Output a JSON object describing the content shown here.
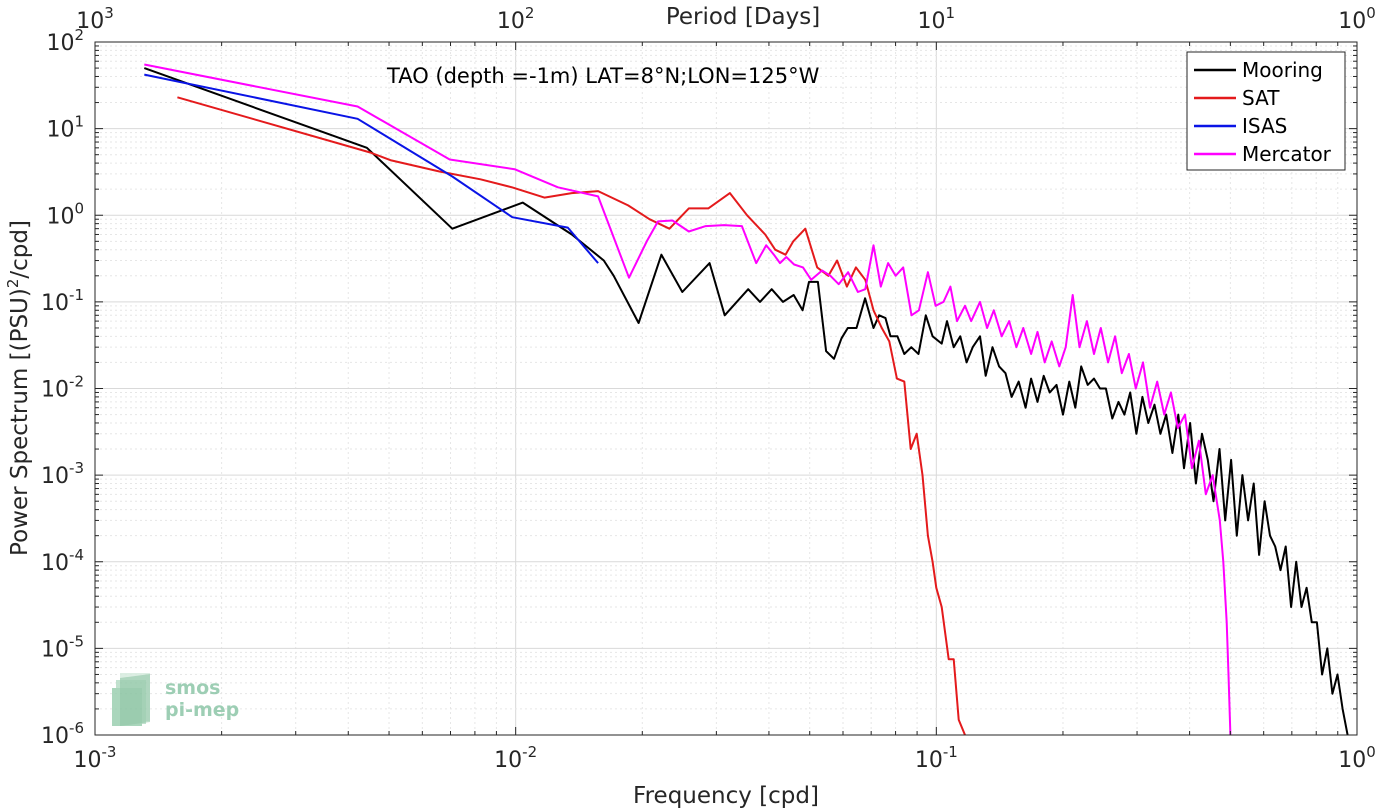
{
  "chart_data": {
    "type": "line",
    "xscale": "log",
    "yscale": "log",
    "xlim": [
      0.001,
      1
    ],
    "ylim": [
      1e-06,
      100
    ],
    "grid": true,
    "minor_grid": true,
    "xlabel": "Frequency [cpd]",
    "ylabel": "Power Spectrum [(PSU)",
    "ylabel_sup": "2",
    "ylabel_tail": "/cpd]",
    "top_axis_label": "Period [Days]",
    "annotation": "TAO (depth =-1m) LAT=8°N;LON=125°W",
    "legend_position": "top-right",
    "x_ticks": [
      {
        "value": 0.001,
        "base": "10",
        "exp": "-3"
      },
      {
        "value": 0.01,
        "base": "10",
        "exp": "-2"
      },
      {
        "value": 0.1,
        "base": "10",
        "exp": "-1"
      },
      {
        "value": 1,
        "base": "10",
        "exp": "0"
      }
    ],
    "top_ticks": [
      {
        "value": 0.001,
        "base": "10",
        "exp": "3"
      },
      {
        "value": 0.01,
        "base": "10",
        "exp": "2"
      },
      {
        "value": 0.1,
        "base": "10",
        "exp": "1"
      },
      {
        "value": 1,
        "base": "10",
        "exp": "0"
      }
    ],
    "y_ticks": [
      {
        "value": 100,
        "base": "10",
        "exp": "2"
      },
      {
        "value": 10,
        "base": "10",
        "exp": "1"
      },
      {
        "value": 1,
        "base": "10",
        "exp": "0"
      },
      {
        "value": 0.1,
        "base": "10",
        "exp": "-1"
      },
      {
        "value": 0.01,
        "base": "10",
        "exp": "-2"
      },
      {
        "value": 0.001,
        "base": "10",
        "exp": "-3"
      },
      {
        "value": 0.0001,
        "base": "10",
        "exp": "-4"
      },
      {
        "value": 1e-05,
        "base": "10",
        "exp": "-5"
      },
      {
        "value": 1e-06,
        "base": "10",
        "exp": "-6"
      }
    ],
    "series": [
      {
        "name": "Mooring",
        "color": "#000000",
        "points": [
          [
            0.00131,
            50
          ],
          [
            0.00443,
            6
          ],
          [
            0.00707,
            0.7
          ],
          [
            0.0104,
            1.4
          ],
          [
            0.0136,
            0.6
          ],
          [
            0.0162,
            0.3
          ],
          [
            0.0171,
            0.2
          ],
          [
            0.0196,
            0.057
          ],
          [
            0.0222,
            0.35
          ],
          [
            0.0249,
            0.13
          ],
          [
            0.0289,
            0.28
          ],
          [
            0.0314,
            0.07
          ],
          [
            0.0357,
            0.14
          ],
          [
            0.0381,
            0.1
          ],
          [
            0.0406,
            0.14
          ],
          [
            0.0432,
            0.1
          ],
          [
            0.0458,
            0.12
          ],
          [
            0.0481,
            0.08
          ],
          [
            0.0498,
            0.17
          ],
          [
            0.0523,
            0.17
          ],
          [
            0.0547,
            0.027
          ],
          [
            0.0571,
            0.022
          ],
          [
            0.0595,
            0.038
          ],
          [
            0.0616,
            0.05
          ],
          [
            0.0646,
            0.05
          ],
          [
            0.0677,
            0.11
          ],
          [
            0.0709,
            0.05
          ],
          [
            0.0731,
            0.07
          ],
          [
            0.0757,
            0.065
          ],
          [
            0.0778,
            0.04
          ],
          [
            0.0808,
            0.04
          ],
          [
            0.0839,
            0.025
          ],
          [
            0.0872,
            0.03
          ],
          [
            0.0907,
            0.025
          ],
          [
            0.0944,
            0.07
          ],
          [
            0.098,
            0.04
          ],
          [
            0.103,
            0.033
          ],
          [
            0.106,
            0.06
          ],
          [
            0.11,
            0.03
          ],
          [
            0.114,
            0.04
          ],
          [
            0.118,
            0.02
          ],
          [
            0.122,
            0.03
          ],
          [
            0.127,
            0.04
          ],
          [
            0.131,
            0.014
          ],
          [
            0.136,
            0.03
          ],
          [
            0.141,
            0.018
          ],
          [
            0.146,
            0.015
          ],
          [
            0.151,
            0.008
          ],
          [
            0.157,
            0.012
          ],
          [
            0.163,
            0.006
          ],
          [
            0.168,
            0.013
          ],
          [
            0.174,
            0.007
          ],
          [
            0.18,
            0.014
          ],
          [
            0.186,
            0.009
          ],
          [
            0.193,
            0.011
          ],
          [
            0.2,
            0.005
          ],
          [
            0.207,
            0.012
          ],
          [
            0.214,
            0.006
          ],
          [
            0.221,
            0.018
          ],
          [
            0.229,
            0.011
          ],
          [
            0.237,
            0.013
          ],
          [
            0.245,
            0.01
          ],
          [
            0.253,
            0.01
          ],
          [
            0.262,
            0.0045
          ],
          [
            0.271,
            0.007
          ],
          [
            0.28,
            0.005
          ],
          [
            0.289,
            0.009
          ],
          [
            0.299,
            0.003
          ],
          [
            0.309,
            0.008
          ],
          [
            0.319,
            0.004
          ],
          [
            0.33,
            0.0065
          ],
          [
            0.341,
            0.003
          ],
          [
            0.352,
            0.005
          ],
          [
            0.364,
            0.0018
          ],
          [
            0.376,
            0.005
          ],
          [
            0.388,
            0.0012
          ],
          [
            0.401,
            0.004
          ],
          [
            0.414,
            0.0008
          ],
          [
            0.428,
            0.003
          ],
          [
            0.442,
            0.0015
          ],
          [
            0.456,
            0.0005
          ],
          [
            0.471,
            0.002
          ],
          [
            0.486,
            0.0003
          ],
          [
            0.502,
            0.0015
          ],
          [
            0.518,
            0.0002
          ],
          [
            0.534,
            0.001
          ],
          [
            0.551,
            0.0003
          ],
          [
            0.568,
            0.0008
          ],
          [
            0.585,
            0.00012
          ],
          [
            0.603,
            0.0005
          ],
          [
            0.621,
            0.0002
          ],
          [
            0.639,
            0.00015
          ],
          [
            0.658,
            8e-05
          ],
          [
            0.677,
            0.00015
          ],
          [
            0.697,
            3e-05
          ],
          [
            0.717,
            0.0001
          ],
          [
            0.738,
            3e-05
          ],
          [
            0.759,
            5e-05
          ],
          [
            0.781,
            2e-05
          ],
          [
            0.803,
            2e-05
          ],
          [
            0.826,
            5e-06
          ],
          [
            0.85,
            1e-05
          ],
          [
            0.874,
            3e-06
          ],
          [
            0.899,
            5e-06
          ],
          [
            0.924,
            2e-06
          ],
          [
            0.95,
            1e-06
          ]
        ]
      },
      {
        "name": "SAT",
        "color": "#e41a1c",
        "points": [
          [
            0.00157,
            23
          ],
          [
            0.00451,
            5.3
          ],
          [
            0.00506,
            4.3
          ],
          [
            0.00659,
            3.2
          ],
          [
            0.00825,
            2.6
          ],
          [
            0.0098,
            2.1
          ],
          [
            0.0117,
            1.6
          ],
          [
            0.0136,
            1.8
          ],
          [
            0.0157,
            1.9
          ],
          [
            0.0185,
            1.3
          ],
          [
            0.0208,
            0.9
          ],
          [
            0.0232,
            0.7
          ],
          [
            0.0258,
            1.2
          ],
          [
            0.0287,
            1.2
          ],
          [
            0.0323,
            1.8
          ],
          [
            0.0355,
            1.0
          ],
          [
            0.0392,
            0.6
          ],
          [
            0.0414,
            0.4
          ],
          [
            0.0438,
            0.35
          ],
          [
            0.0457,
            0.5
          ],
          [
            0.0488,
            0.7
          ],
          [
            0.0521,
            0.25
          ],
          [
            0.0554,
            0.2
          ],
          [
            0.0581,
            0.3
          ],
          [
            0.0613,
            0.15
          ],
          [
            0.0644,
            0.25
          ],
          [
            0.0678,
            0.18
          ],
          [
            0.0709,
            0.08
          ],
          [
            0.0742,
            0.05
          ],
          [
            0.0773,
            0.035
          ],
          [
            0.0806,
            0.013
          ],
          [
            0.0839,
            0.012
          ],
          [
            0.0869,
            0.002
          ],
          [
            0.0898,
            0.003
          ],
          [
            0.0927,
            0.001
          ],
          [
            0.0955,
            0.0002
          ],
          [
            0.098,
            0.0001
          ],
          [
            0.1,
            5e-05
          ],
          [
            0.103,
            3e-05
          ],
          [
            0.107,
            7.5e-06
          ],
          [
            0.11,
            7.5e-06
          ],
          [
            0.113,
            1.5e-06
          ],
          [
            0.117,
            1e-06
          ]
        ]
      },
      {
        "name": "ISAS",
        "color": "#0a14e6",
        "points": [
          [
            0.00131,
            42
          ],
          [
            0.00421,
            13
          ],
          [
            0.00707,
            2.8
          ],
          [
            0.00982,
            0.95
          ],
          [
            0.0133,
            0.72
          ],
          [
            0.0157,
            0.28
          ]
        ]
      },
      {
        "name": "Mercator",
        "color": "#ff00ff",
        "points": [
          [
            0.00131,
            55
          ],
          [
            0.00421,
            18
          ],
          [
            0.00697,
            4.4
          ],
          [
            0.00994,
            3.4
          ],
          [
            0.0126,
            2.1
          ],
          [
            0.0157,
            1.65
          ],
          [
            0.0186,
            0.19
          ],
          [
            0.0205,
            0.5
          ],
          [
            0.0218,
            0.85
          ],
          [
            0.0236,
            0.87
          ],
          [
            0.0258,
            0.65
          ],
          [
            0.0283,
            0.75
          ],
          [
            0.0313,
            0.77
          ],
          [
            0.0345,
            0.75
          ],
          [
            0.0373,
            0.28
          ],
          [
            0.0394,
            0.45
          ],
          [
            0.0411,
            0.35
          ],
          [
            0.0425,
            0.28
          ],
          [
            0.044,
            0.33
          ],
          [
            0.0459,
            0.27
          ],
          [
            0.0482,
            0.25
          ],
          [
            0.0504,
            0.18
          ],
          [
            0.0535,
            0.23
          ],
          [
            0.056,
            0.2
          ],
          [
            0.0586,
            0.16
          ],
          [
            0.0617,
            0.22
          ],
          [
            0.0651,
            0.13
          ],
          [
            0.0678,
            0.14
          ],
          [
            0.0709,
            0.45
          ],
          [
            0.0738,
            0.15
          ],
          [
            0.0768,
            0.28
          ],
          [
            0.08,
            0.2
          ],
          [
            0.0834,
            0.25
          ],
          [
            0.0873,
            0.07
          ],
          [
            0.0909,
            0.08
          ],
          [
            0.0955,
            0.22
          ],
          [
            0.0996,
            0.09
          ],
          [
            0.104,
            0.1
          ],
          [
            0.108,
            0.15
          ],
          [
            0.112,
            0.06
          ],
          [
            0.117,
            0.09
          ],
          [
            0.121,
            0.06
          ],
          [
            0.127,
            0.1
          ],
          [
            0.132,
            0.05
          ],
          [
            0.137,
            0.08
          ],
          [
            0.143,
            0.04
          ],
          [
            0.149,
            0.06
          ],
          [
            0.155,
            0.03
          ],
          [
            0.161,
            0.05
          ],
          [
            0.168,
            0.025
          ],
          [
            0.174,
            0.045
          ],
          [
            0.181,
            0.02
          ],
          [
            0.188,
            0.035
          ],
          [
            0.196,
            0.018
          ],
          [
            0.203,
            0.03
          ],
          [
            0.211,
            0.12
          ],
          [
            0.219,
            0.03
          ],
          [
            0.228,
            0.06
          ],
          [
            0.237,
            0.025
          ],
          [
            0.246,
            0.05
          ],
          [
            0.256,
            0.02
          ],
          [
            0.266,
            0.04
          ],
          [
            0.276,
            0.015
          ],
          [
            0.287,
            0.025
          ],
          [
            0.298,
            0.01
          ],
          [
            0.31,
            0.02
          ],
          [
            0.322,
            0.006
          ],
          [
            0.335,
            0.012
          ],
          [
            0.348,
            0.005
          ],
          [
            0.361,
            0.009
          ],
          [
            0.375,
            0.0035
          ],
          [
            0.39,
            0.005
          ],
          [
            0.405,
            0.0012
          ],
          [
            0.421,
            0.0025
          ],
          [
            0.437,
            0.0006
          ],
          [
            0.454,
            0.001
          ],
          [
            0.472,
            0.0003
          ],
          [
            0.481,
            0.0001
          ],
          [
            0.49,
            2e-05
          ],
          [
            0.495,
            5e-06
          ],
          [
            0.5,
            1e-06
          ]
        ]
      }
    ]
  }
}
